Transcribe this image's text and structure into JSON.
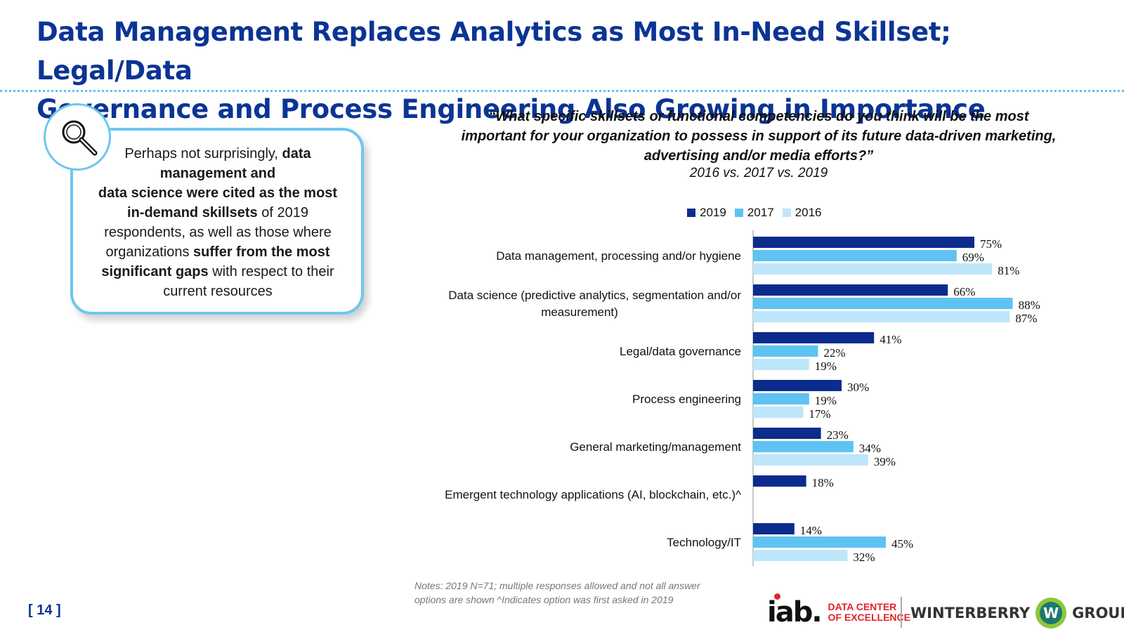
{
  "header": {
    "title_line1": "Data Management Replaces Analytics as Most In-Need Skillset; Legal/Data",
    "title_line2": "Governance and Process Engineering Also Growing in Importance"
  },
  "callout": {
    "icon": "magnifier-icon",
    "t1": "Perhaps not surprisingly, ",
    "b1": "data management and",
    "b2": "data science were cited as the most in-demand skillsets",
    "t2": " of 2019 respondents, as well as those where organizations ",
    "b3": "suffer from the most significant gaps",
    "t3": " with respect to their current resources"
  },
  "question": {
    "line1": "“What specific skillsets or functional competencies do you think will be the most",
    "line2": "important for your organization to possess in support of its future data-driven marketing,",
    "line3": "advertising and/or media efforts?”",
    "subtitle": "2016 vs. 2017 vs. 2019"
  },
  "chart_data": {
    "type": "bar",
    "orientation": "horizontal",
    "categories": [
      "Data management, processing and/or hygiene",
      "Data science (predictive analytics, segmentation and/or measurement)",
      "Legal/data governance",
      "Process engineering",
      "General marketing/management",
      "Emergent technology applications (AI, blockchain, etc.)^",
      "Technology/IT"
    ],
    "category_lines": [
      [
        "Data management, processing and/or hygiene"
      ],
      [
        "Data science (predictive analytics, segmentation and/or",
        "measurement)"
      ],
      [
        "Legal/data governance"
      ],
      [
        "Process engineering"
      ],
      [
        "General marketing/management"
      ],
      [
        "Emergent technology applications (AI, blockchain, etc.)^"
      ],
      [
        "Technology/IT"
      ]
    ],
    "series": [
      {
        "name": "2019",
        "color": "#0b2c8c",
        "values": [
          75,
          66,
          41,
          30,
          23,
          18,
          14
        ]
      },
      {
        "name": "2017",
        "color": "#5ec3f2",
        "values": [
          69,
          88,
          22,
          19,
          34,
          null,
          45
        ]
      },
      {
        "name": "2016",
        "color": "#bde6fb",
        "values": [
          81,
          87,
          19,
          17,
          39,
          null,
          32
        ]
      }
    ],
    "value_suffix": "%",
    "xlim": [
      0,
      100
    ],
    "legend_position": "top",
    "grid": false
  },
  "footer": {
    "notes_line1": "Notes: 2019 N=71; multiple responses allowed and not all answer",
    "notes_line2": "options are shown ^Indicates option was first asked in 2019",
    "page": "[ 14 ]",
    "iab_logo_text": "iab.",
    "iab_sub1": "DATA CENTER",
    "iab_sub2": "OF EXCELLENCE",
    "winterberry_left": "WINTERBERRY",
    "winterberry_badge": "W",
    "winterberry_right": "GROUP"
  }
}
